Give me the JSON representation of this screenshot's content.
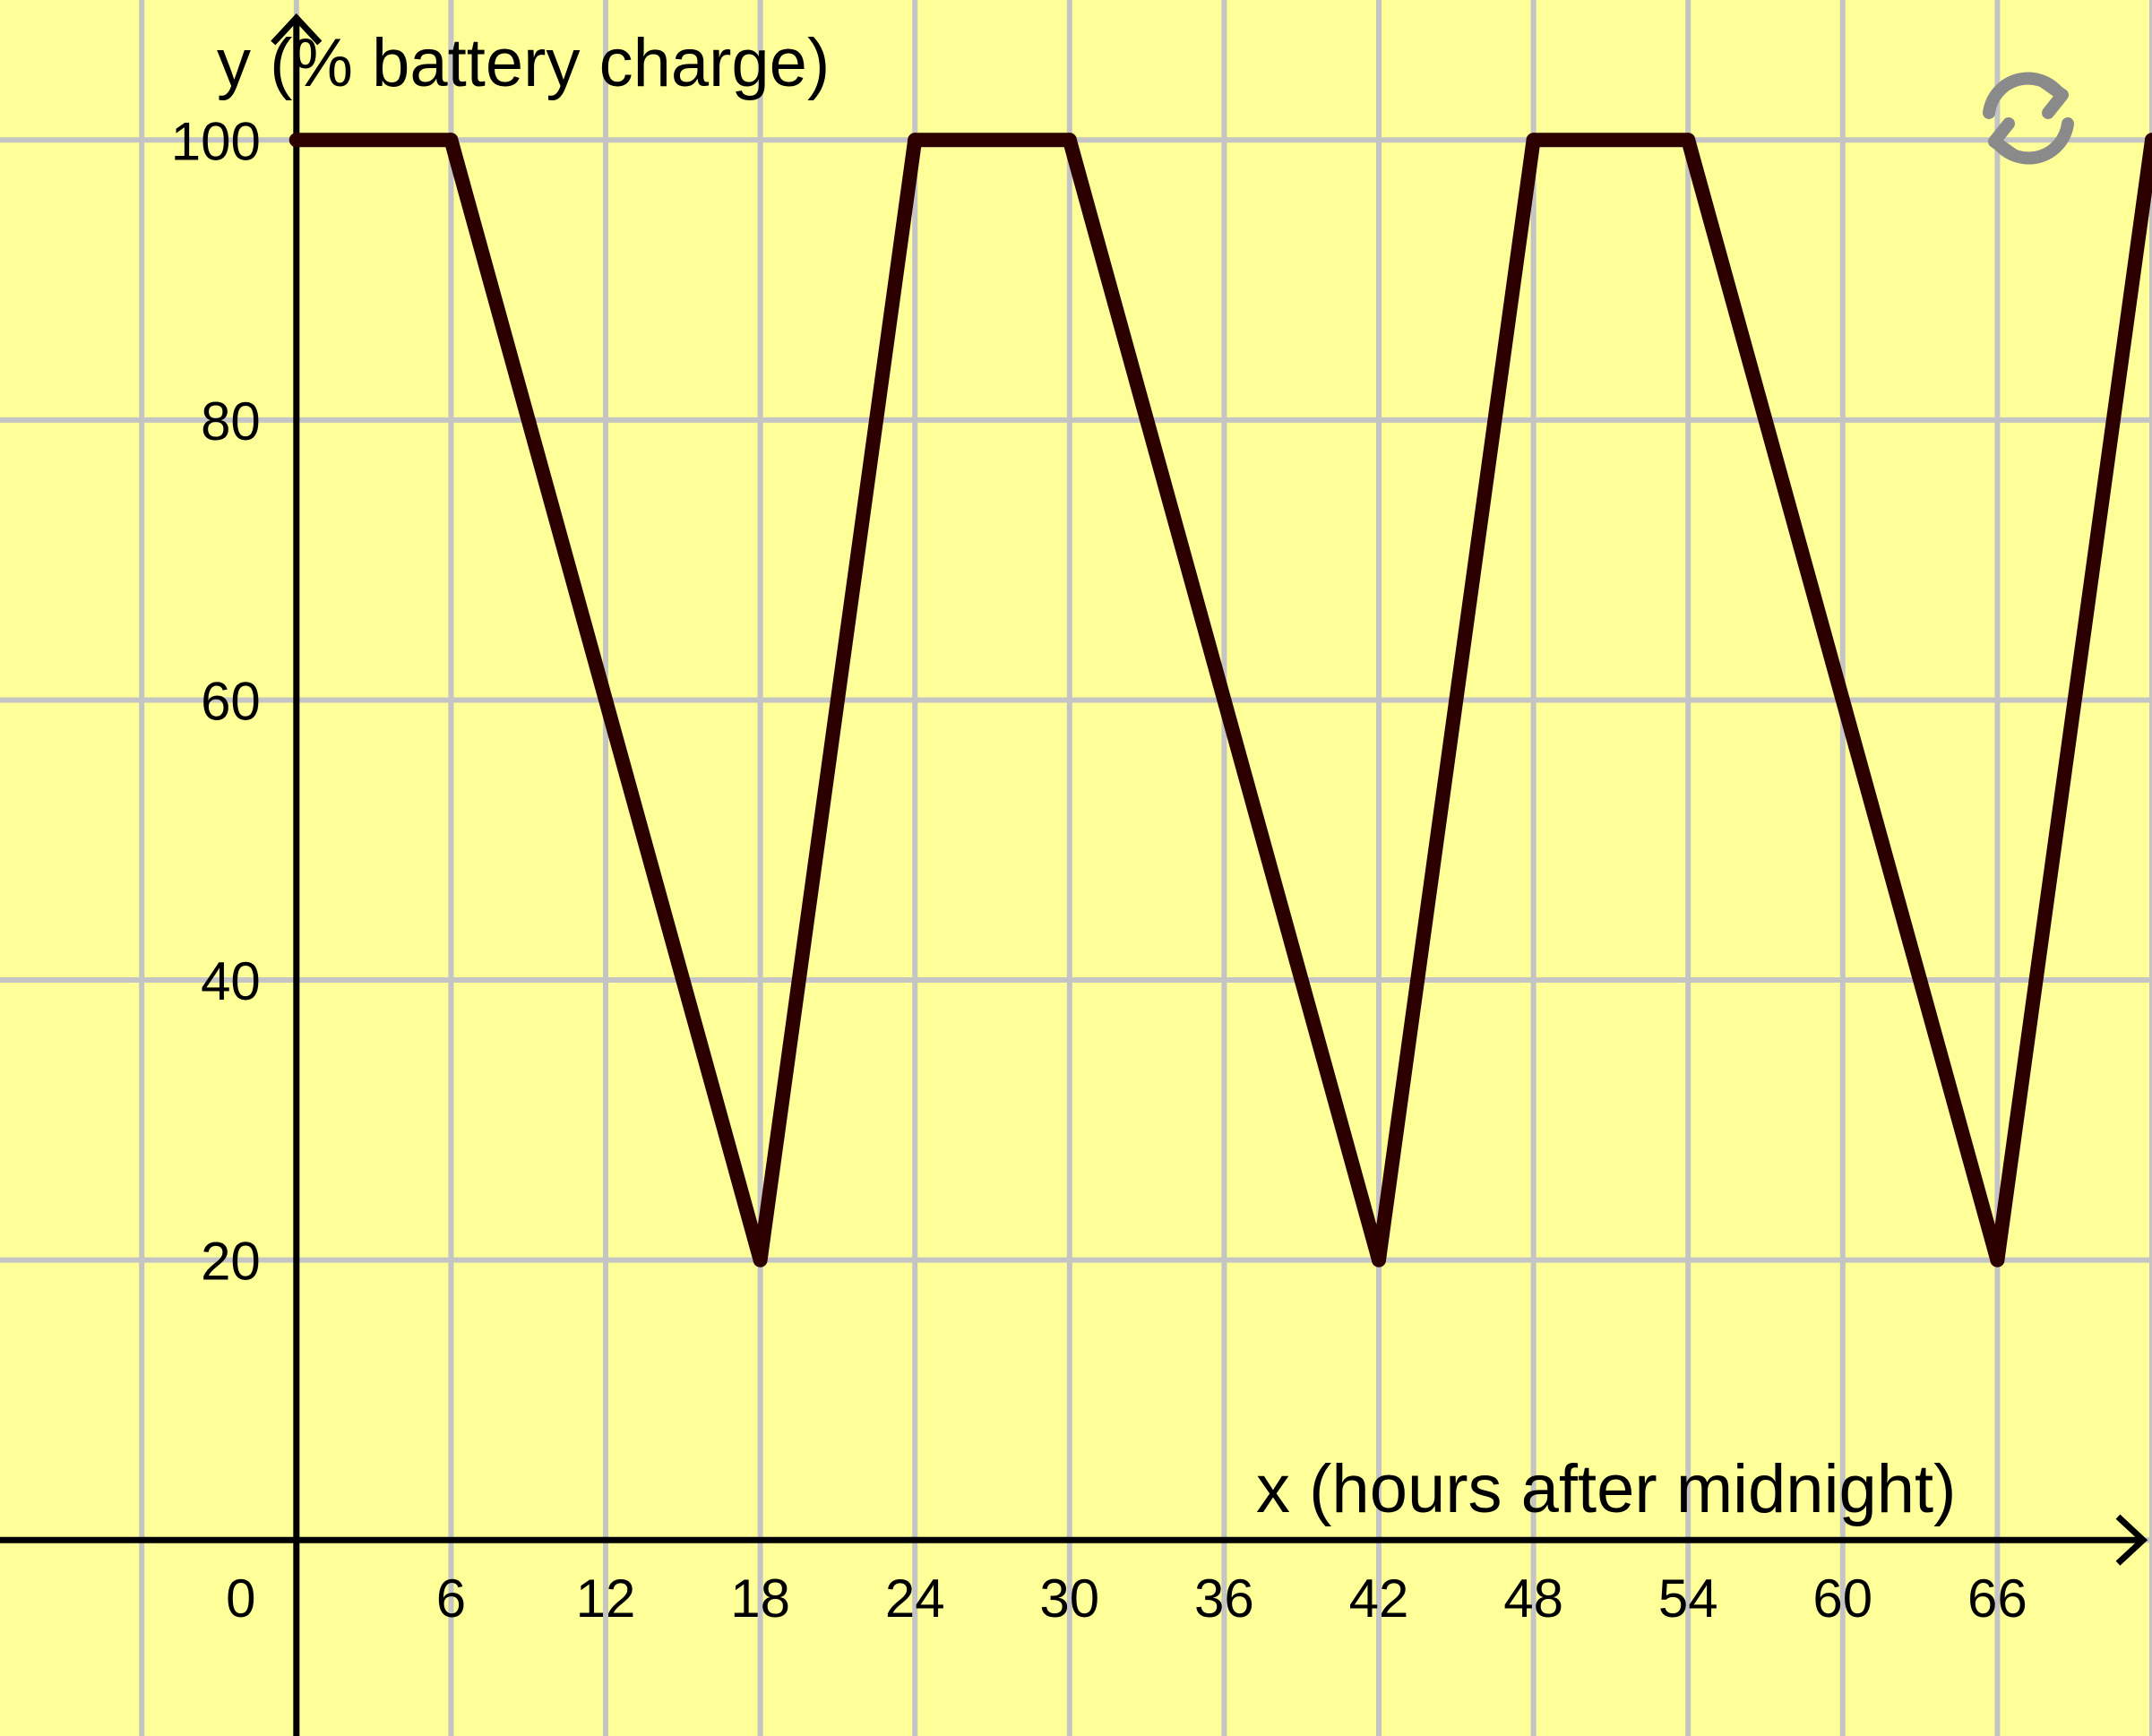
{
  "chart_data": {
    "type": "line",
    "xlabel": "x (hours after midnight)",
    "ylabel": "y (% battery charge)",
    "xlim": [
      -11.5,
      72
    ],
    "ylim": [
      -14,
      110
    ],
    "x_ticks": [
      0,
      6,
      12,
      18,
      24,
      30,
      36,
      42,
      48,
      54,
      60,
      66
    ],
    "x_tick_labels": [
      "0",
      "6",
      "12",
      "18",
      "24",
      "30",
      "36",
      "42",
      "48",
      "54",
      "60",
      "66"
    ],
    "y_ticks": [
      20,
      40,
      60,
      80,
      100
    ],
    "y_tick_labels": [
      "20",
      "40",
      "60",
      "80",
      "100"
    ],
    "grid": true,
    "series": [
      {
        "x": [
          0,
          6,
          18,
          24,
          30,
          42,
          48,
          54,
          66,
          72
        ],
        "y": [
          100,
          100,
          20,
          100,
          100,
          20,
          100,
          100,
          20,
          100
        ],
        "color": "#2d0000"
      }
    ]
  },
  "colors": {
    "background": "#ffff99",
    "grid": "#c4c4c4",
    "axis": "#000000",
    "line": "#2d0000"
  },
  "controls": {
    "reset_icon": "refresh-icon"
  }
}
